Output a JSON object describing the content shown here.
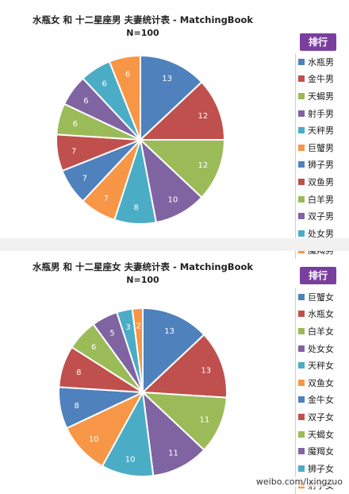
{
  "chart_data": [
    {
      "type": "pie",
      "title": "水瓶女 和 十二星座男 夫妻统计表 - MatchingBook",
      "subtitle": "N=100",
      "legend_title": "排行",
      "slices": [
        {
          "label": "水瓶男",
          "value": 13,
          "color": "#4f81bd"
        },
        {
          "label": "金牛男",
          "value": 12,
          "color": "#c0504d"
        },
        {
          "label": "天蝎男",
          "value": 12,
          "color": "#9bbb59"
        },
        {
          "label": "射手男",
          "value": 10,
          "color": "#8064a2"
        },
        {
          "label": "天秤男",
          "value": 8,
          "color": "#4bacc6"
        },
        {
          "label": "巨蟹男",
          "value": 7,
          "color": "#f79646"
        },
        {
          "label": "狮子男",
          "value": 7,
          "color": "#4f81bd"
        },
        {
          "label": "双鱼男",
          "value": 7,
          "color": "#c0504d"
        },
        {
          "label": "白羊男",
          "value": 6,
          "color": "#9bbb59"
        },
        {
          "label": "双子男",
          "value": 6,
          "color": "#8064a2"
        },
        {
          "label": "处女男",
          "value": 6,
          "color": "#4bacc6"
        },
        {
          "label": "魔羯男",
          "value": 6,
          "color": "#f79646"
        }
      ]
    },
    {
      "type": "pie",
      "title": "水瓶男 和 十二星座女 夫妻统计表 - MatchingBook",
      "subtitle": "N=100",
      "legend_title": "排行",
      "slices": [
        {
          "label": "巨蟹女",
          "value": 13,
          "color": "#4f81bd"
        },
        {
          "label": "水瓶女",
          "value": 13,
          "color": "#c0504d"
        },
        {
          "label": "白羊女",
          "value": 11,
          "color": "#9bbb59"
        },
        {
          "label": "处女女",
          "value": 11,
          "color": "#8064a2"
        },
        {
          "label": "天秤女",
          "value": 10,
          "color": "#4bacc6"
        },
        {
          "label": "双鱼女",
          "value": 10,
          "color": "#f79646"
        },
        {
          "label": "金牛女",
          "value": 8,
          "color": "#4f81bd"
        },
        {
          "label": "双子女",
          "value": 8,
          "color": "#c0504d"
        },
        {
          "label": "天蝎女",
          "value": 6,
          "color": "#9bbb59"
        },
        {
          "label": "魔羯女",
          "value": 5,
          "color": "#8064a2"
        },
        {
          "label": "狮子女",
          "value": 3,
          "color": "#4bacc6"
        },
        {
          "label": "射手女",
          "value": 2,
          "color": "#f79646"
        }
      ]
    }
  ],
  "watermark": "weibo.com/lxingzuo"
}
